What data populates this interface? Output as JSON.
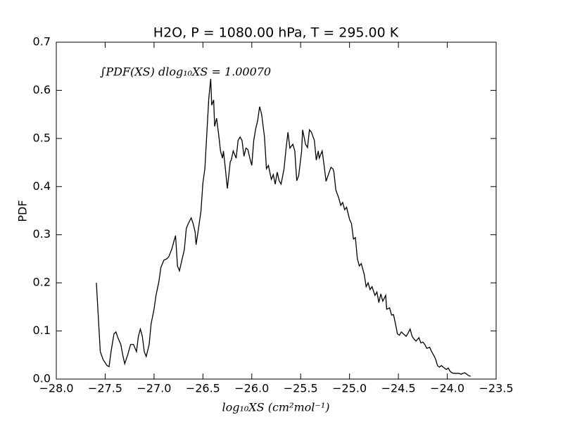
{
  "chart_data": {
    "type": "line",
    "title": "H2O, P = 1080.00 hPa, T = 295.00 K",
    "xlabel": "log₁₀XS (cm²mol⁻¹)",
    "ylabel": "PDF",
    "annotation": "∫PDF(XS) dlog₁₀XS =  1.00070",
    "xlim": [
      -28.0,
      -23.5
    ],
    "ylim": [
      0,
      0.7
    ],
    "xticks": [
      {
        "value": -28.0,
        "label": "−28.0"
      },
      {
        "value": -27.5,
        "label": "−27.5"
      },
      {
        "value": -27.0,
        "label": "−27.0"
      },
      {
        "value": -26.5,
        "label": "−26.5"
      },
      {
        "value": -26.0,
        "label": "−26.0"
      },
      {
        "value": -25.5,
        "label": "−25.5"
      },
      {
        "value": -25.0,
        "label": "−25.0"
      },
      {
        "value": -24.5,
        "label": "−24.5"
      },
      {
        "value": -24.0,
        "label": "−24.0"
      },
      {
        "value": -23.5,
        "label": "−23.5"
      }
    ],
    "yticks": [
      {
        "value": 0,
        "label": "0.0"
      },
      0.1,
      0.2,
      0.3,
      0.4,
      0.5,
      0.6,
      0.7
    ],
    "series": [
      {
        "color": "#000000",
        "x": [
          -27.59,
          -27.55,
          -27.52,
          -27.48,
          -27.46,
          -27.44,
          -27.41,
          -27.39,
          -27.37,
          -27.34,
          -27.32,
          -27.3,
          -27.27,
          -27.24,
          -27.21,
          -27.18,
          -27.16,
          -27.14,
          -27.12,
          -27.1,
          -27.08,
          -27.05,
          -27.03,
          -27.0,
          -26.98,
          -26.95,
          -26.93,
          -26.9,
          -26.87,
          -26.85,
          -26.82,
          -26.8,
          -26.78,
          -26.76,
          -26.74,
          -26.72,
          -26.69,
          -26.67,
          -26.65,
          -26.62,
          -26.6,
          -26.58,
          -26.57,
          -26.55,
          -26.52,
          -26.5,
          -26.48,
          -26.46,
          -26.44,
          -26.42,
          -26.41,
          -26.39,
          -26.38,
          -26.36,
          -26.34,
          -26.32,
          -26.3,
          -26.29,
          -26.27,
          -26.25,
          -26.22,
          -26.21,
          -26.19,
          -26.16,
          -26.14,
          -26.12,
          -26.1,
          -26.08,
          -26.06,
          -26.04,
          -26.02,
          -26.0,
          -25.98,
          -25.96,
          -25.94,
          -25.92,
          -25.9,
          -25.87,
          -25.85,
          -25.83,
          -25.8,
          -25.78,
          -25.76,
          -25.74,
          -25.72,
          -25.7,
          -25.67,
          -25.65,
          -25.63,
          -25.61,
          -25.58,
          -25.56,
          -25.54,
          -25.52,
          -25.49,
          -25.48,
          -25.45,
          -25.43,
          -25.41,
          -25.39,
          -25.36,
          -25.34,
          -25.32,
          -25.31,
          -25.28,
          -25.26,
          -25.24,
          -25.22,
          -25.19,
          -25.17,
          -25.16,
          -25.14,
          -25.11,
          -25.09,
          -25.07,
          -25.05,
          -25.03,
          -25.0,
          -24.98,
          -24.96,
          -24.94,
          -24.92,
          -24.9,
          -24.88,
          -24.85,
          -24.83,
          -24.81,
          -24.79,
          -24.77,
          -24.74,
          -24.72,
          -24.7,
          -24.68,
          -24.66,
          -24.63,
          -24.62,
          -24.59,
          -24.57,
          -24.55,
          -24.53,
          -24.51,
          -24.49,
          -24.47,
          -24.45,
          -24.42,
          -24.4,
          -24.38,
          -24.36,
          -24.34,
          -24.32,
          -24.29,
          -24.27,
          -24.25,
          -24.23,
          -24.21,
          -24.18,
          -24.16,
          -24.14,
          -24.12,
          -24.1,
          -24.08,
          -24.06,
          -24.03,
          -24.01,
          -23.99,
          -23.97,
          -23.95,
          -23.93,
          -23.91,
          -23.88,
          -23.86,
          -23.84,
          -23.82,
          -23.8,
          -23.78,
          -23.76
        ],
        "values": [
          0.2,
          0.057,
          0.04,
          0.028,
          0.026,
          0.057,
          0.094,
          0.098,
          0.086,
          0.072,
          0.05,
          0.032,
          0.05,
          0.072,
          0.072,
          0.057,
          0.089,
          0.104,
          0.089,
          0.057,
          0.047,
          0.072,
          0.115,
          0.145,
          0.174,
          0.203,
          0.232,
          0.247,
          0.25,
          0.254,
          0.269,
          0.284,
          0.298,
          0.235,
          0.225,
          0.243,
          0.269,
          0.313,
          0.323,
          0.335,
          0.323,
          0.306,
          0.279,
          0.306,
          0.349,
          0.408,
          0.437,
          0.51,
          0.583,
          0.624,
          0.569,
          0.58,
          0.525,
          0.542,
          0.51,
          0.474,
          0.459,
          0.474,
          0.437,
          0.396,
          0.452,
          0.455,
          0.474,
          0.459,
          0.496,
          0.503,
          0.496,
          0.463,
          0.48,
          0.477,
          0.459,
          0.444,
          0.496,
          0.52,
          0.537,
          0.566,
          0.551,
          0.503,
          0.437,
          0.444,
          0.415,
          0.425,
          0.405,
          0.43,
          0.412,
          0.405,
          0.437,
          0.478,
          0.513,
          0.48,
          0.488,
          0.474,
          0.412,
          0.423,
          0.474,
          0.518,
          0.488,
          0.481,
          0.518,
          0.513,
          0.496,
          0.455,
          0.474,
          0.459,
          0.474,
          0.444,
          0.411,
          0.423,
          0.44,
          0.437,
          0.43,
          0.393,
          0.376,
          0.361,
          0.367,
          0.352,
          0.357,
          0.332,
          0.323,
          0.291,
          0.294,
          0.25,
          0.235,
          0.24,
          0.218,
          0.192,
          0.2,
          0.186,
          0.192,
          0.174,
          0.181,
          0.159,
          0.177,
          0.162,
          0.174,
          0.145,
          0.148,
          0.133,
          0.134,
          0.115,
          0.094,
          0.091,
          0.098,
          0.094,
          0.089,
          0.096,
          0.104,
          0.089,
          0.083,
          0.079,
          0.086,
          0.075,
          0.077,
          0.072,
          0.064,
          0.066,
          0.057,
          0.05,
          0.042,
          0.028,
          0.025,
          0.028,
          0.023,
          0.02,
          0.023,
          0.016,
          0.013,
          0.012,
          0.012,
          0.012,
          0.01,
          0.012,
          0.013,
          0.01,
          0.007,
          0.006
        ]
      }
    ]
  }
}
